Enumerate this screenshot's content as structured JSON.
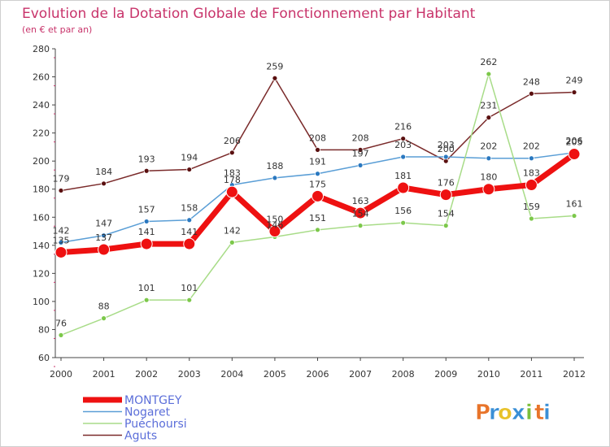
{
  "header": {
    "title": "Evolution de la Dotation Globale de Fonctionnement par Habitant",
    "subtitle": "(en € et par an)"
  },
  "brand": {
    "letters": [
      "P",
      "r",
      "o",
      "x",
      "i",
      "t",
      "i"
    ],
    "colors": [
      "#e8742a",
      "#3a8fd6",
      "#e8c22a",
      "#3a8fd6",
      "#7bbf3a",
      "#e8742a",
      "#3a8fd6"
    ]
  },
  "chart_data": {
    "type": "line",
    "title": "Evolution de la Dotation Globale de Fonctionnement par Habitant",
    "subtitle": "(en € et par an)",
    "xlabel": "",
    "ylabel": "",
    "ylim": [
      60,
      280
    ],
    "yticks": [
      60,
      80,
      100,
      120,
      140,
      160,
      180,
      200,
      220,
      240,
      260,
      280
    ],
    "grid": false,
    "legend_position": "bottom-left",
    "categories": [
      "2000",
      "2001",
      "2002",
      "2003",
      "2004",
      "2005",
      "2006",
      "2007",
      "2008",
      "2009",
      "2010",
      "2011",
      "2012"
    ],
    "series": [
      {
        "name": "Aguts",
        "color": "#7a2a2a",
        "marker": "#5a1010",
        "width": 1.5,
        "radius": 3,
        "values": [
          179,
          184,
          193,
          194,
          206,
          259,
          208,
          208,
          216,
          200,
          231,
          248,
          249
        ],
        "labels": [
          "179",
          "184",
          "193",
          "194",
          "206",
          "259",
          "208",
          "208",
          "216",
          "200",
          "231",
          "248",
          "249"
        ]
      },
      {
        "name": "Nogaret",
        "color": "#5a9ed6",
        "marker": "#2a78c0",
        "width": 1.5,
        "radius": 3,
        "values": [
          142,
          147,
          157,
          158,
          183,
          188,
          191,
          197,
          203,
          203,
          202,
          202,
          206
        ],
        "labels": [
          "142",
          "147",
          "157",
          "158",
          "183",
          "188",
          "191",
          "197",
          "203",
          "203",
          "202",
          "202",
          "206"
        ]
      },
      {
        "name": "Puéchoursi",
        "color": "#a8dc88",
        "marker": "#7cc84a",
        "width": 1.5,
        "radius": 3,
        "values": [
          76,
          88,
          101,
          101,
          142,
          146,
          151,
          154,
          156,
          154,
          262,
          159,
          161
        ],
        "labels": [
          "76",
          "88",
          "101",
          "101",
          "142",
          "146",
          "151",
          "154",
          "156",
          "154",
          "262",
          "159",
          "161"
        ]
      },
      {
        "name": "MONTGEY",
        "color": "#ee1111",
        "marker": "#ee1111",
        "width": 7,
        "radius": 7,
        "values": [
          135,
          137,
          141,
          141,
          178,
          150,
          175,
          163,
          181,
          176,
          180,
          183,
          205
        ],
        "labels": [
          "135",
          "137",
          "141",
          "141",
          "178",
          "150",
          "175",
          "163",
          "181",
          "176",
          "180",
          "183",
          "205"
        ]
      }
    ],
    "legend": [
      {
        "name": "MONTGEY",
        "color": "#ee1111",
        "text_color": "#5b6ed9"
      },
      {
        "name": "Nogaret",
        "color": "#5a9ed6",
        "text_color": "#5b6ed9"
      },
      {
        "name": "Puéchoursi",
        "color": "#a8dc88",
        "text_color": "#5b6ed9"
      },
      {
        "name": "Aguts",
        "color": "#7a2a2a",
        "text_color": "#5b6ed9"
      }
    ]
  }
}
